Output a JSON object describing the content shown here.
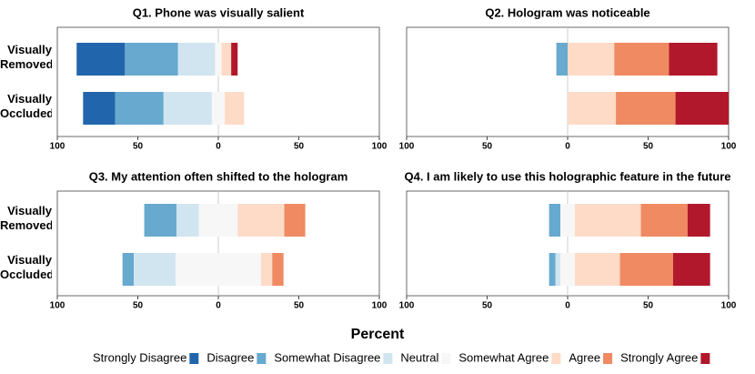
{
  "chart_data": [
    {
      "type": "diverging-bar",
      "title": "Q1. Phone was visually salient",
      "categories": [
        "Visually Removed",
        "Visually Occluded"
      ],
      "series": [
        {
          "name": "Strongly Disagree",
          "color": "#2166ac",
          "values": [
            30,
            20
          ]
        },
        {
          "name": "Disagree",
          "color": "#67a9cf",
          "values": [
            33,
            30
          ]
        },
        {
          "name": "Somewhat Disagree",
          "color": "#d1e5f0",
          "values": [
            23,
            30
          ]
        },
        {
          "name": "Neutral",
          "color": "#f7f7f7",
          "values": [
            4,
            8
          ]
        },
        {
          "name": "Somewhat Agree",
          "color": "#fddbc7",
          "values": [
            6,
            12
          ]
        },
        {
          "name": "Agree",
          "color": "#ef8a62",
          "values": [
            0,
            0
          ]
        },
        {
          "name": "Strongly Agree",
          "color": "#b2182b",
          "values": [
            4,
            0
          ]
        }
      ],
      "xlim": [
        -100,
        100
      ],
      "xticks": [
        {
          "value": -100,
          "label": "100"
        },
        {
          "value": -50,
          "label": "50"
        },
        0,
        50,
        100
      ]
    },
    {
      "type": "diverging-bar",
      "title": "Q2. Hologram was noticeable",
      "categories": [
        "Visually Removed",
        "Visually Occluded"
      ],
      "series": [
        {
          "name": "Strongly Disagree",
          "color": "#2166ac",
          "values": [
            0,
            0
          ]
        },
        {
          "name": "Disagree",
          "color": "#67a9cf",
          "values": [
            7,
            0
          ]
        },
        {
          "name": "Somewhat Disagree",
          "color": "#d1e5f0",
          "values": [
            0,
            0
          ]
        },
        {
          "name": "Neutral",
          "color": "#f7f7f7",
          "values": [
            0,
            0
          ]
        },
        {
          "name": "Somewhat Agree",
          "color": "#fddbc7",
          "values": [
            29,
            30
          ]
        },
        {
          "name": "Agree",
          "color": "#ef8a62",
          "values": [
            34,
            37
          ]
        },
        {
          "name": "Strongly Agree",
          "color": "#b2182b",
          "values": [
            30,
            33
          ]
        }
      ],
      "xlim": [
        -100,
        100
      ],
      "xticks": [
        {
          "value": -100,
          "label": "100"
        },
        {
          "value": -50,
          "label": "50"
        },
        0,
        50,
        100
      ]
    },
    {
      "type": "diverging-bar",
      "title": "Q3. My attention often shifted to the hologram",
      "categories": [
        "Visually Removed",
        "Visually Occluded"
      ],
      "series": [
        {
          "name": "Strongly Disagree",
          "color": "#2166ac",
          "values": [
            0,
            0
          ]
        },
        {
          "name": "Disagree",
          "color": "#67a9cf",
          "values": [
            20,
            7
          ]
        },
        {
          "name": "Somewhat Disagree",
          "color": "#d1e5f0",
          "values": [
            14,
            26
          ]
        },
        {
          "name": "Neutral",
          "color": "#f7f7f7",
          "values": [
            24,
            53
          ]
        },
        {
          "name": "Somewhat Agree",
          "color": "#fddbc7",
          "values": [
            29,
            7
          ]
        },
        {
          "name": "Agree",
          "color": "#ef8a62",
          "values": [
            13,
            7
          ]
        },
        {
          "name": "Strongly Agree",
          "color": "#b2182b",
          "values": [
            0,
            0
          ]
        }
      ],
      "xlim": [
        -100,
        100
      ],
      "xticks": [
        {
          "value": -100,
          "label": "100"
        },
        {
          "value": -50,
          "label": "50"
        },
        0,
        50,
        100
      ]
    },
    {
      "type": "diverging-bar",
      "title": "Q4. I am likely to use this holographic feature in the future",
      "categories": [
        "Visually Removed",
        "Visually Occluded"
      ],
      "series": [
        {
          "name": "Strongly Disagree",
          "color": "#2166ac",
          "values": [
            0,
            0
          ]
        },
        {
          "name": "Disagree",
          "color": "#67a9cf",
          "values": [
            7,
            4
          ]
        },
        {
          "name": "Somewhat Disagree",
          "color": "#d1e5f0",
          "values": [
            0,
            3
          ]
        },
        {
          "name": "Neutral",
          "color": "#f7f7f7",
          "values": [
            9,
            9
          ]
        },
        {
          "name": "Somewhat Agree",
          "color": "#fddbc7",
          "values": [
            41,
            28
          ]
        },
        {
          "name": "Agree",
          "color": "#ef8a62",
          "values": [
            29,
            33
          ]
        },
        {
          "name": "Strongly Agree",
          "color": "#b2182b",
          "values": [
            14,
            23
          ]
        }
      ],
      "xlim": [
        -100,
        100
      ],
      "xticks": [
        {
          "value": -100,
          "label": "100"
        },
        {
          "value": -50,
          "label": "50"
        },
        0,
        50,
        100
      ]
    }
  ],
  "x_label": "Percent"
}
